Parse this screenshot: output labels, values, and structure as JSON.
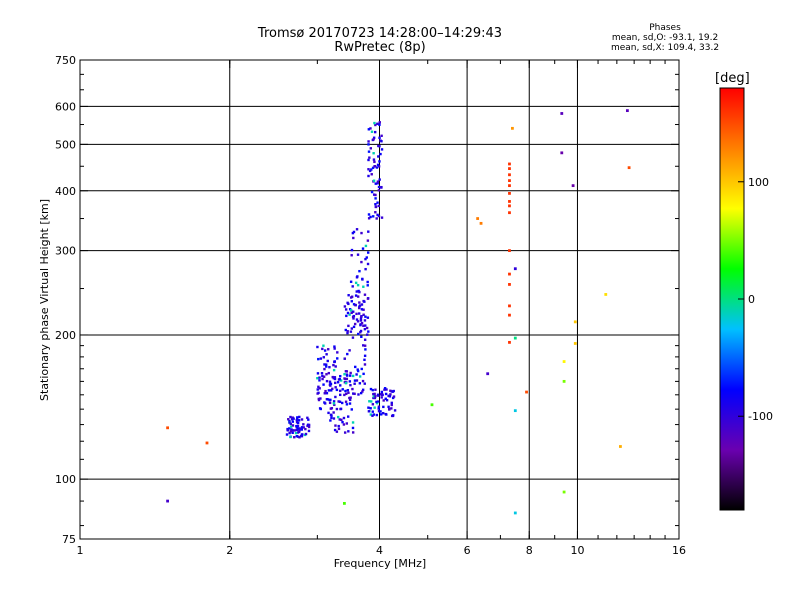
{
  "title": {
    "line1": "Tromsø 20170723 14:28:00–14:29:43",
    "line2": "RwPretec (8p)"
  },
  "corner_info": {
    "heading": "Phases",
    "line_o": "mean, sd,O: -93.1, 19.2",
    "line_x": "mean, sd,X: 109.4, 33.2"
  },
  "chart_data": {
    "type": "scatter",
    "xlabel": "Frequency [MHz]",
    "ylabel": "Stationary phase Virtual Height [km]",
    "xscale": "log",
    "yscale": "log",
    "xlim": [
      1,
      16
    ],
    "ylim": [
      75,
      750
    ],
    "x_ticks": [
      {
        "value": 1,
        "label": "1"
      },
      {
        "value": 2,
        "label": "2"
      },
      {
        "value": 4,
        "label": "4"
      },
      {
        "value": 6,
        "label": "6"
      },
      {
        "value": 8,
        "label": "8"
      },
      {
        "value": 10,
        "label": "10"
      },
      {
        "value": 16,
        "label": "16"
      }
    ],
    "y_ticks": [
      {
        "value": 75,
        "label": "75"
      },
      {
        "value": 100,
        "label": "100"
      },
      {
        "value": 200,
        "label": "200"
      },
      {
        "value": 300,
        "label": "300"
      },
      {
        "value": 400,
        "label": "400"
      },
      {
        "value": 500,
        "label": "500"
      },
      {
        "value": 600,
        "label": "600"
      },
      {
        "value": 750,
        "label": "750"
      }
    ],
    "x_grid": [
      2,
      4,
      6,
      8,
      10
    ],
    "y_grid": [
      100,
      200,
      300,
      400,
      500,
      600
    ],
    "grid": true,
    "colorbar": {
      "label": "[deg]",
      "range": [
        -180,
        180
      ],
      "ticks": [
        {
          "value": 100,
          "label": "100"
        },
        {
          "value": 0,
          "label": "0"
        },
        {
          "value": -100,
          "label": "-100"
        }
      ],
      "colors": [
        "#000000",
        "#6a00b0",
        "#0000ff",
        "#00c0ff",
        "#00ff00",
        "#ffff00",
        "#ff8000",
        "#ff0000"
      ]
    },
    "points": [
      {
        "x": 1.5,
        "y": 128,
        "phase": 150
      },
      {
        "x": 1.8,
        "y": 119,
        "phase": 150
      },
      {
        "x": 1.5,
        "y": 90,
        "phase": -110
      },
      {
        "x": 3.4,
        "y": 89,
        "phase": 40
      },
      {
        "x": 5.1,
        "y": 143,
        "phase": 40
      },
      {
        "x": 6.3,
        "y": 350,
        "phase": 130
      },
      {
        "x": 6.4,
        "y": 342,
        "phase": 130
      },
      {
        "x": 6.6,
        "y": 166,
        "phase": -110
      },
      {
        "x": 7.3,
        "y": 455,
        "phase": 160
      },
      {
        "x": 7.3,
        "y": 445,
        "phase": 160
      },
      {
        "x": 7.3,
        "y": 432,
        "phase": 160
      },
      {
        "x": 7.3,
        "y": 420,
        "phase": 160
      },
      {
        "x": 7.3,
        "y": 410,
        "phase": 160
      },
      {
        "x": 7.3,
        "y": 395,
        "phase": 160
      },
      {
        "x": 7.3,
        "y": 380,
        "phase": 160
      },
      {
        "x": 7.3,
        "y": 372,
        "phase": 160
      },
      {
        "x": 7.3,
        "y": 360,
        "phase": 160
      },
      {
        "x": 7.3,
        "y": 300,
        "phase": 160
      },
      {
        "x": 7.3,
        "y": 268,
        "phase": 160
      },
      {
        "x": 7.3,
        "y": 255,
        "phase": 160
      },
      {
        "x": 7.3,
        "y": 230,
        "phase": 160
      },
      {
        "x": 7.3,
        "y": 220,
        "phase": 160
      },
      {
        "x": 7.3,
        "y": 193,
        "phase": 160
      },
      {
        "x": 7.4,
        "y": 540,
        "phase": 120
      },
      {
        "x": 7.5,
        "y": 275,
        "phase": -100
      },
      {
        "x": 7.5,
        "y": 197,
        "phase": 0
      },
      {
        "x": 7.5,
        "y": 139,
        "phase": -20
      },
      {
        "x": 7.5,
        "y": 85,
        "phase": -20
      },
      {
        "x": 7.9,
        "y": 152,
        "phase": 150
      },
      {
        "x": 9.3,
        "y": 580,
        "phase": -120
      },
      {
        "x": 9.3,
        "y": 480,
        "phase": -130
      },
      {
        "x": 9.4,
        "y": 176,
        "phase": 80
      },
      {
        "x": 9.4,
        "y": 160,
        "phase": 50
      },
      {
        "x": 9.4,
        "y": 94,
        "phase": 50
      },
      {
        "x": 9.8,
        "y": 410,
        "phase": -130
      },
      {
        "x": 9.9,
        "y": 213,
        "phase": 100
      },
      {
        "x": 9.9,
        "y": 192,
        "phase": 100
      },
      {
        "x": 11.4,
        "y": 243,
        "phase": 90
      },
      {
        "x": 12.2,
        "y": 117,
        "phase": 110
      },
      {
        "x": 12.6,
        "y": 588,
        "phase": -120
      },
      {
        "x": 12.7,
        "y": 447,
        "phase": 150
      }
    ],
    "trace": {
      "o_mode_phase_mean": -93.1,
      "o_mode_phase_sd": 19.2,
      "segments": [
        {
          "x_start": 2.6,
          "x_end": 2.9,
          "y_start": 122,
          "y_end": 135
        },
        {
          "x_start": 3.0,
          "x_end": 3.3,
          "y_start": 140,
          "y_end": 190
        },
        {
          "x_start": 3.15,
          "x_end": 3.55,
          "y_start": 125,
          "y_end": 165
        },
        {
          "x_start": 3.4,
          "x_end": 3.75,
          "y_start": 150,
          "y_end": 250
        },
        {
          "x_start": 3.5,
          "x_end": 3.8,
          "y_start": 200,
          "y_end": 340
        },
        {
          "x_start": 3.8,
          "x_end": 4.3,
          "y_start": 135,
          "y_end": 155
        },
        {
          "x_start": 3.8,
          "x_end": 4.05,
          "y_start": 350,
          "y_end": 560
        }
      ]
    }
  }
}
